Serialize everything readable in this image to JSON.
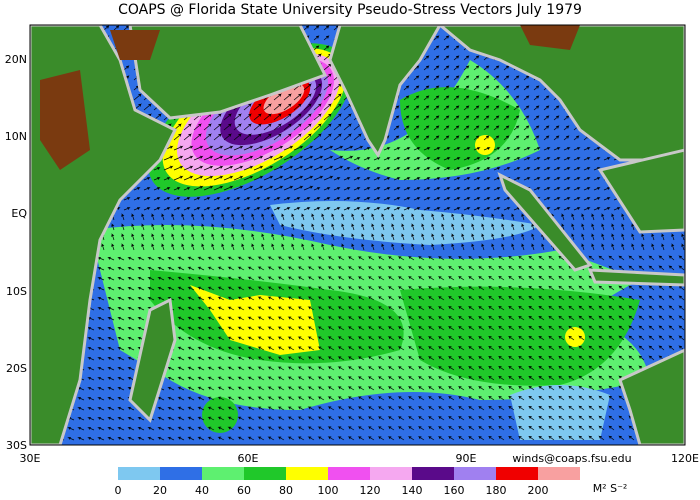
{
  "title": "COAPS @ Florida State University Pseudo-Stress Vectors  July 1979",
  "lat_labels": [
    "20N",
    "10N",
    "EQ",
    "10S",
    "20S",
    "30S"
  ],
  "lon_labels": [
    "30E",
    "60E",
    "90E",
    "120E"
  ],
  "credit": "winds@coaps.fsu.edu",
  "colorbar": {
    "levels": [
      0,
      20,
      40,
      60,
      80,
      100,
      120,
      140,
      160,
      180,
      200
    ],
    "colors": [
      "#7ec8f0",
      "#2f6fe6",
      "#5ef070",
      "#20c82a",
      "#ffff00",
      "#f050f0",
      "#f5a8f0",
      "#5a0a8a",
      "#a080f0",
      "#f00000",
      "#f8a0a0"
    ],
    "unit": "M² S⁻²"
  }
}
